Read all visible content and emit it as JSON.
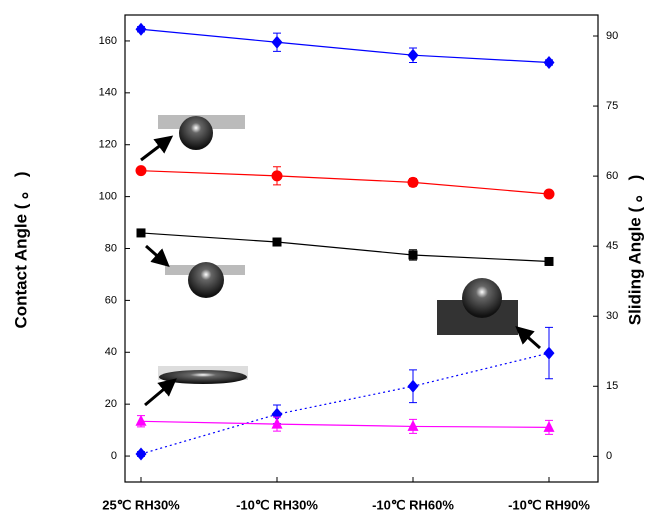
{
  "chart_data": {
    "type": "line",
    "y_label": "Contact Angle ( 。 )",
    "y2_label": "Sliding Angle ( 。 )",
    "categories": [
      "25℃ RH30%",
      "-10℃ RH30%",
      "-10℃ RH60%",
      "-10℃ RH90%"
    ],
    "ylim": [
      -10,
      170
    ],
    "yticks": [
      0,
      20,
      40,
      60,
      80,
      100,
      120,
      140,
      160
    ],
    "y2lim": [
      -5.5,
      94.5
    ],
    "y2ticks": [
      0,
      15,
      30,
      45,
      60,
      75,
      90
    ],
    "series": [
      {
        "color": "#0000ff",
        "marker": "diamond",
        "dash": "solid",
        "values": [
          164.5,
          159.5,
          154.5,
          151.7
        ],
        "errors": [
          1,
          3.5,
          2.8,
          1
        ]
      },
      {
        "color": "#ff0000",
        "marker": "circle",
        "dash": "solid",
        "values": [
          110,
          108,
          105.5,
          101
        ],
        "errors": [
          1,
          3.5,
          1.5,
          1
        ]
      },
      {
        "color": "#000000",
        "marker": "square",
        "dash": "solid",
        "values": [
          86,
          82.5,
          77.5,
          75
        ],
        "errors": [
          1,
          1,
          2,
          1
        ]
      },
      {
        "color": "#0000ff",
        "marker": "diamond",
        "dash": "dotted",
        "axis": "y2",
        "values": [
          0.5,
          9,
          15,
          22.1
        ],
        "errors": [
          0.5,
          2,
          3.5,
          5.5
        ]
      },
      {
        "color": "#ff00ff",
        "marker": "triangle",
        "dash": "solid",
        "axis": "y2",
        "values": [
          7.5,
          6.9,
          6.4,
          6.2
        ],
        "errors": [
          1.2,
          1.5,
          1.5,
          1.5
        ]
      }
    ]
  }
}
